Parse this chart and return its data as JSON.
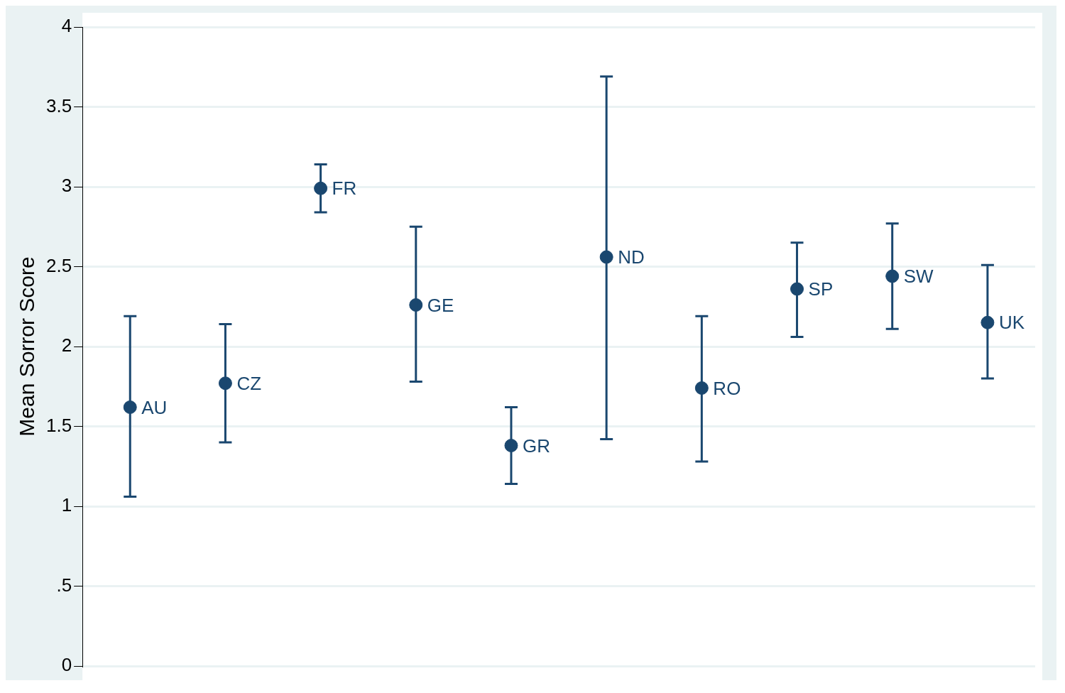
{
  "chart_data": {
    "type": "scatter",
    "ylabel": "Mean Sorror Score",
    "categories": [
      "AU",
      "CZ",
      "FR",
      "GE",
      "GR",
      "ND",
      "RO",
      "SP",
      "SW",
      "UK"
    ],
    "series": [
      {
        "color": "#1a476f",
        "values": [
          1.62,
          1.77,
          2.99,
          2.26,
          1.38,
          2.56,
          1.74,
          2.36,
          2.44,
          2.15
        ],
        "errors": [
          [
            1.06,
            2.19
          ],
          [
            1.4,
            2.14
          ],
          [
            2.84,
            3.14
          ],
          [
            1.78,
            2.75
          ],
          [
            1.14,
            1.62
          ],
          [
            1.42,
            3.69
          ],
          [
            1.28,
            2.19
          ],
          [
            2.06,
            2.65
          ],
          [
            2.11,
            2.77
          ],
          [
            1.8,
            2.51
          ]
        ]
      }
    ],
    "ylim": [
      0,
      4
    ],
    "yticks": [
      0,
      {
        "value": 0.5,
        "label": ".5"
      },
      1,
      1.5,
      2,
      2.5,
      3,
      3.5,
      4
    ],
    "grid": "y",
    "legend": false,
    "marker": "circle",
    "tick_labels": "y"
  }
}
